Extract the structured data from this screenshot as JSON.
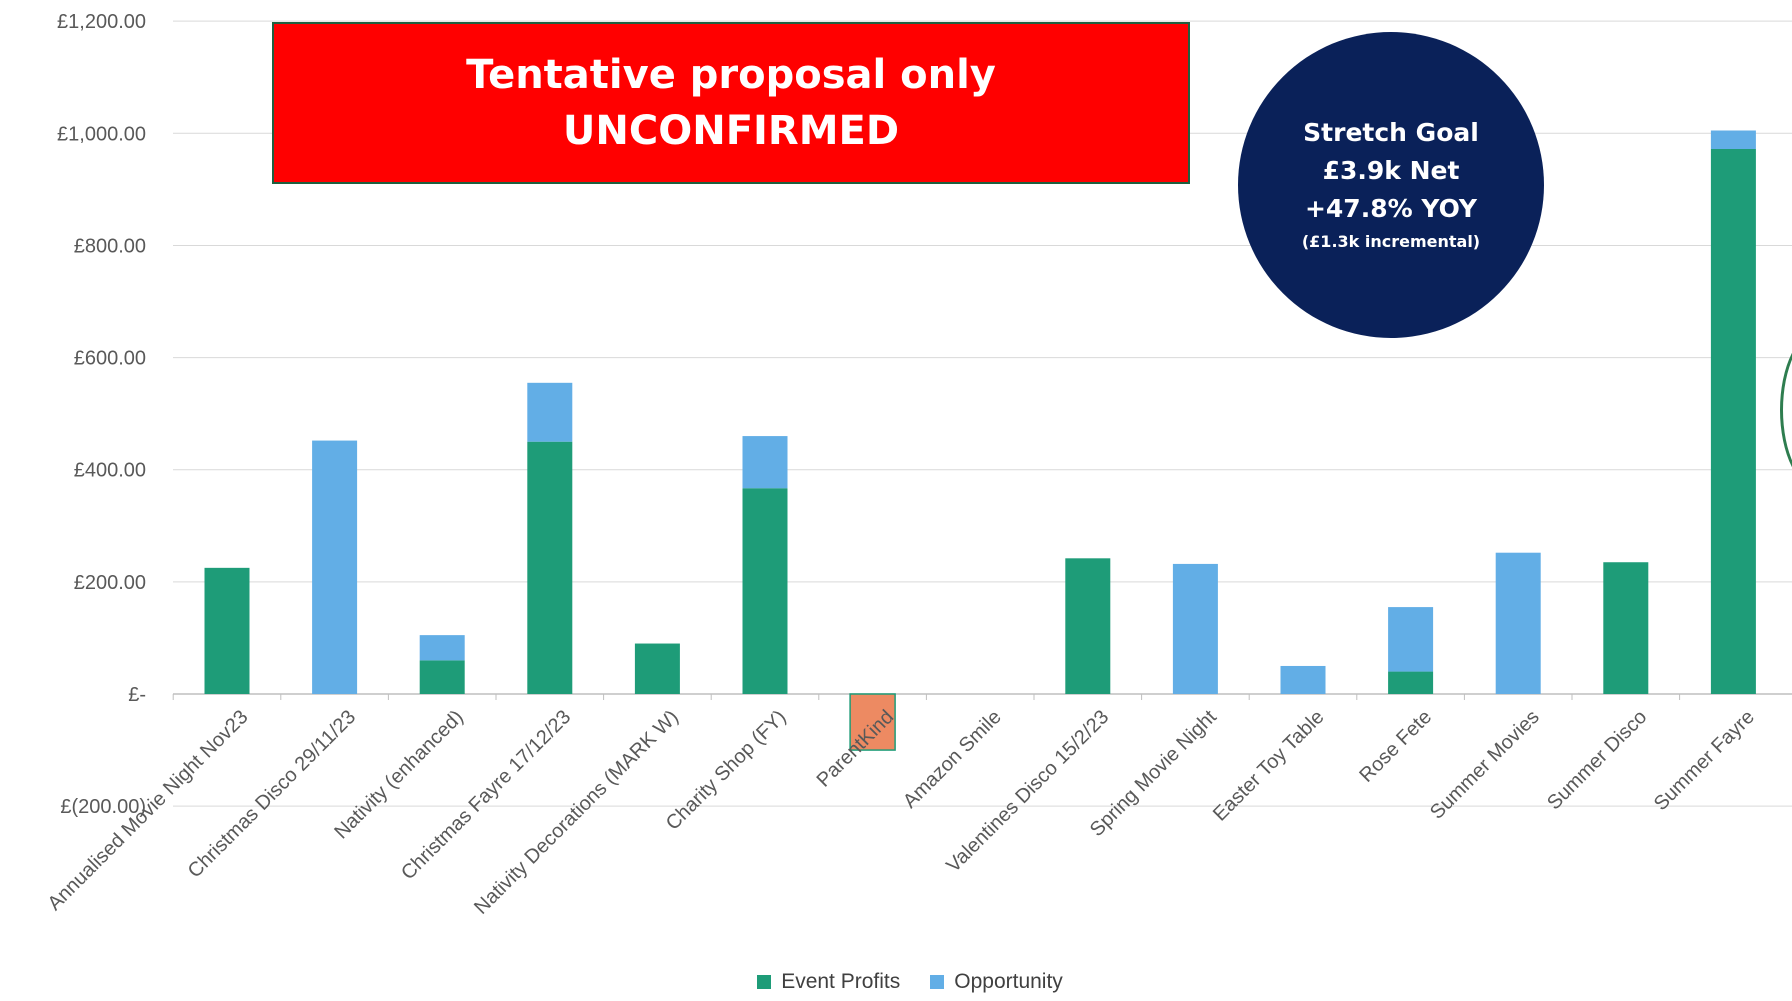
{
  "banner": {
    "line1": "Tentative proposal only",
    "line2": "UNCONFIRMED"
  },
  "goal": {
    "line1": "Stretch Goal",
    "line2": "£3.9k Net",
    "line3": "+47.8% YOY",
    "line4": "(£1.3k incremental)"
  },
  "colors": {
    "event_profits": "#1e9c78",
    "opportunity": "#62aee6",
    "negative": "#ed8a62",
    "banner": "#ff0000",
    "goal_circle": "#0a2159"
  },
  "chart_data": {
    "type": "bar",
    "stacked": true,
    "categories": [
      "Annualised Movie Night Nov23",
      "Christmas Disco 29/11/23",
      "Nativity (enhanced)",
      "Christmas Fayre 17/12/23",
      "Nativity Decorations (MARK W)",
      "Charity Shop (FY)",
      "ParentKind",
      "Amazon Smile",
      "Valentines Disco 15/2/23",
      "Spring Movie Night",
      "Easter Toy Table",
      "Rose Fete",
      "Summer Movies",
      "Summer Disco",
      "Summer Fayre"
    ],
    "series": [
      {
        "name": "Event Profits",
        "values": [
          225,
          0,
          60,
          450,
          90,
          367,
          -100,
          0,
          242,
          0,
          0,
          40,
          0,
          235,
          972
        ]
      },
      {
        "name": "Opportunity",
        "values": [
          0,
          452,
          45,
          105,
          0,
          93,
          0,
          0,
          0,
          232,
          50,
          115,
          252,
          0,
          33
        ]
      }
    ],
    "yticks": [
      "£1,200.00",
      "£1,000.00",
      "£800.00",
      "£600.00",
      "£400.00",
      "£200.00",
      "£-",
      "£(200.00)"
    ],
    "ylim": [
      -200,
      1200
    ],
    "grid": true,
    "legend_position": "bottom"
  }
}
